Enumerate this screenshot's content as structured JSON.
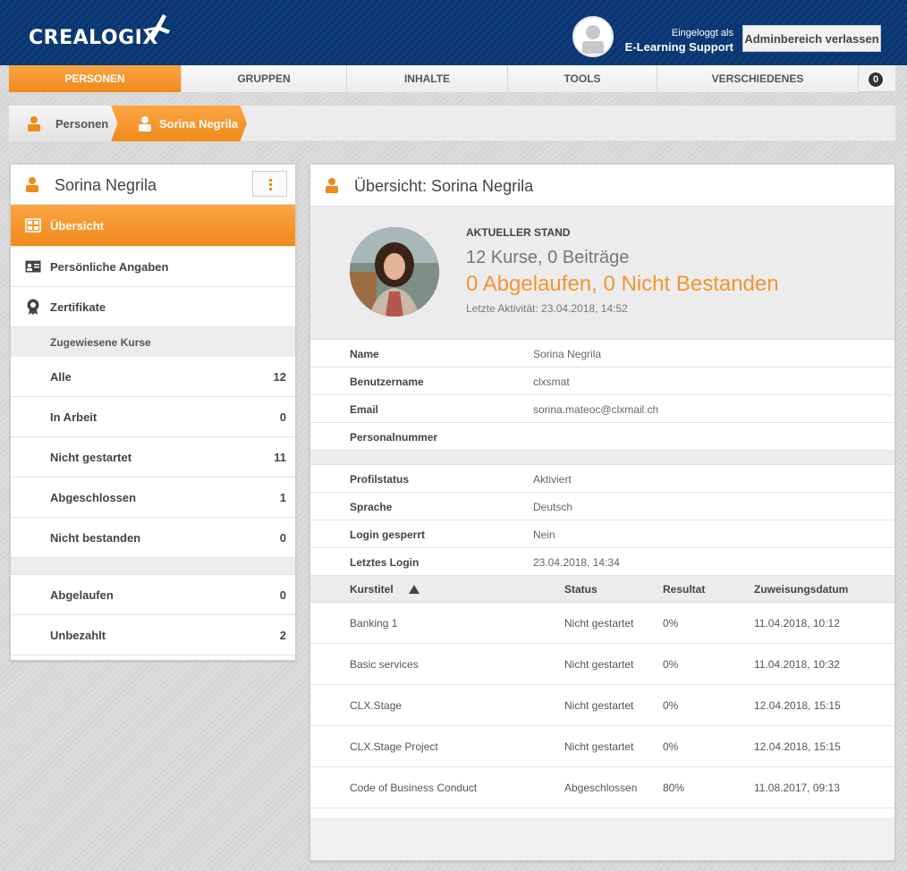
{
  "header": {
    "logo_text": "CREALOGIX",
    "login_label": "Eingeloggt als",
    "login_user": "E-Learning Support",
    "admin_button": "Adminbereich verlassen"
  },
  "nav": {
    "items": [
      {
        "label": "PERSONEN",
        "active": true
      },
      {
        "label": "GRUPPEN",
        "active": false
      },
      {
        "label": "INHALTE",
        "active": false
      },
      {
        "label": "TOOLS",
        "active": false
      },
      {
        "label": "VERSCHIEDENES",
        "active": false
      }
    ],
    "badge": "0"
  },
  "breadcrumb": {
    "items": [
      "Personen",
      "Sorina Negrila"
    ]
  },
  "sidebar": {
    "title": "Sorina Negrila",
    "items": [
      {
        "label": "Übersicht",
        "icon": "overview-icon",
        "active": true
      },
      {
        "label": "Persönliche Angaben",
        "icon": "id-card-icon",
        "active": false
      },
      {
        "label": "Zertifikate",
        "icon": "certificate-icon",
        "active": false
      }
    ],
    "section_label": "Zugewiesene Kurse",
    "courses": [
      {
        "label": "Alle",
        "count": "12"
      },
      {
        "label": "In Arbeit",
        "count": "0"
      },
      {
        "label": "Nicht gestartet",
        "count": "11"
      },
      {
        "label": "Abgeschlossen",
        "count": "1"
      },
      {
        "label": "Nicht bestanden",
        "count": "0"
      }
    ],
    "extra": [
      {
        "label": "Abgelaufen",
        "count": "0"
      },
      {
        "label": "Unbezahlt",
        "count": "2"
      }
    ]
  },
  "main": {
    "title": "Übersicht: Sorina Negrila",
    "summary": {
      "label": "AKTUELLER STAND",
      "line1": "12 Kurse, 0 Beiträge",
      "line2": "0 Abgelaufen, 0 Nicht Bestanden",
      "last_activity": "Letzte Aktivität: 23.04.2018, 14:52"
    },
    "info_group1": [
      {
        "key": "Name",
        "value": "Sorina Negrila"
      },
      {
        "key": "Benutzername",
        "value": "clxsmat"
      },
      {
        "key": "Email",
        "value": "sorina.mateoc@clxmail.ch"
      },
      {
        "key": "Personalnummer",
        "value": ""
      }
    ],
    "info_group2": [
      {
        "key": "Profilstatus",
        "value": "Aktiviert"
      },
      {
        "key": "Sprache",
        "value": "Deutsch"
      },
      {
        "key": "Login gesperrt",
        "value": "Nein"
      },
      {
        "key": "Letztes Login",
        "value": "23.04.2018, 14:34"
      }
    ],
    "table": {
      "headers": [
        "Kurstitel",
        "Status",
        "Resultat",
        "Zuweisungsdatum"
      ],
      "rows": [
        [
          "Banking 1",
          "Nicht gestartet",
          "0%",
          "11.04.2018, 10:12"
        ],
        [
          "Basic services",
          "Nicht gestartet",
          "0%",
          "11.04.2018, 10:32"
        ],
        [
          "CLX.Stage",
          "Nicht gestartet",
          "0%",
          "12.04.2018, 15:15"
        ],
        [
          "CLX.Stage Project",
          "Nicht gestartet",
          "0%",
          "12.04.2018, 15:15"
        ],
        [
          "Code of Business Conduct",
          "Abgeschlossen",
          "80%",
          "11.08.2017, 09:13"
        ]
      ]
    }
  },
  "colors": {
    "accent": "#f08a1a",
    "header_blue": "#0b3a78"
  }
}
